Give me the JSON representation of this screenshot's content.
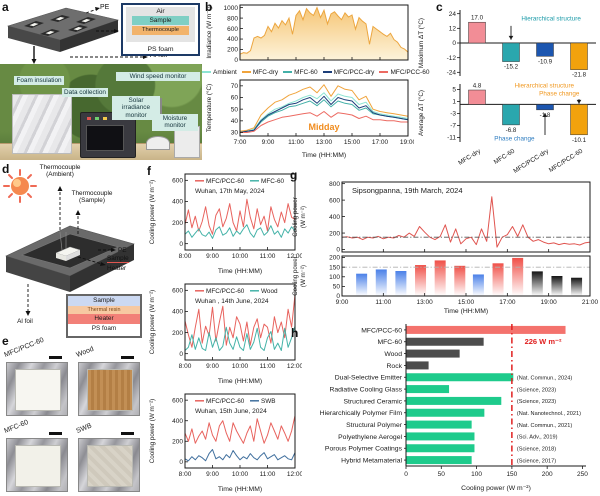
{
  "figure": {
    "panel_labels": {
      "a": "a",
      "b": "b",
      "c": "c",
      "d": "d",
      "e": "e",
      "f": "f",
      "g": "g",
      "h": "h"
    }
  },
  "panel_a": {
    "schematic": {
      "pe_label": "PE",
      "al_foil_label": "Al foil"
    },
    "stack": {
      "air": "Air",
      "sample": "Sample",
      "thermocouple": "Thermocouple",
      "ps_foam": "PS foam"
    },
    "photo_labels": {
      "foam": "Foam insulation",
      "data": "Data collection",
      "wind": "Wind speed monitor",
      "solar": "Solar irradiance monitor",
      "moisture": "Moisture monitor"
    }
  },
  "panel_d": {
    "labels": {
      "t_amb": "Thermocouple (Ambient)",
      "t_sample": "Thermocouple (Sample)",
      "pe": "PE",
      "sample": "Sample",
      "heater": "Heater",
      "al_foil": "Al foil"
    },
    "stack": {
      "sample": "Sample",
      "resin": "Thermal resin",
      "heater": "Heater",
      "foam": "PS foam"
    }
  },
  "panel_e": {
    "labels": [
      "MFC/PCC-60",
      "Wood",
      "MFC-60",
      "SWB"
    ]
  },
  "chart_data": [
    {
      "id": "b_irr",
      "type": "area",
      "ylabel": "Irradiance (W m⁻²)",
      "ylim": [
        0,
        1050
      ],
      "yticks": [
        0,
        200,
        400,
        600,
        800,
        1000
      ],
      "xticks": [
        "7:00",
        "9:00",
        "11:00",
        "13:00",
        "15:00",
        "17:00",
        "19:00"
      ],
      "fill": "#f6c677",
      "series": [
        {
          "name": "Irradiance",
          "color": "#eca63f",
          "values": [
            110,
            140,
            130,
            180,
            420,
            450,
            420,
            470,
            640,
            540,
            700,
            610,
            750,
            670,
            800,
            490,
            850,
            940,
            770,
            980,
            900,
            850,
            1000,
            810,
            950,
            690,
            880,
            920,
            840,
            770,
            900,
            820,
            860,
            590,
            810,
            740,
            690,
            300,
            640,
            590,
            540,
            490,
            450,
            510,
            390,
            340,
            240,
            210,
            150
          ]
        }
      ]
    },
    {
      "id": "b_temp",
      "type": "line",
      "ylabel": "Temperature (°C)",
      "xlabel": "Time (HH:MM)",
      "ylim": [
        27,
        75
      ],
      "yticks": [
        30,
        40,
        50,
        60,
        70
      ],
      "xticks": [
        "7:00",
        "9:00",
        "11:00",
        "13:00",
        "15:00",
        "17:00",
        "19:00"
      ],
      "annotation": {
        "text": "Midday",
        "color": "#f08c1e"
      },
      "series": [
        {
          "name": "Ambient",
          "color": "#8de4d3",
          "values": [
            30,
            31,
            33,
            41,
            46,
            50,
            52,
            55,
            57,
            60,
            62,
            59,
            64,
            57,
            63,
            61,
            60,
            54,
            56,
            48,
            46,
            45,
            44,
            43,
            42
          ]
        },
        {
          "name": "MFC-dry",
          "color": "#f0a43c",
          "values": [
            31,
            32,
            34,
            45,
            51,
            56,
            58,
            62,
            64,
            67,
            69,
            64,
            71,
            61,
            70,
            67,
            66,
            58,
            61,
            50,
            48,
            47,
            46,
            45,
            44
          ]
        },
        {
          "name": "MFC-60",
          "color": "#43b0a8",
          "values": [
            30,
            31,
            32,
            39,
            44,
            47,
            49,
            52,
            53,
            55,
            57,
            53,
            58,
            52,
            57,
            55,
            54,
            49,
            51,
            46,
            45,
            44,
            43,
            42,
            41
          ]
        },
        {
          "name": "MFC/PCC-dry",
          "color": "#1d3f7a",
          "values": [
            30,
            31,
            32,
            40,
            45,
            48,
            51,
            54,
            55,
            58,
            60,
            55,
            61,
            54,
            60,
            58,
            57,
            51,
            53,
            47,
            45,
            44,
            43,
            42,
            41
          ]
        },
        {
          "name": "MFC/PCC-60",
          "color": "#ec6a62",
          "values": [
            30,
            30,
            31,
            36,
            39,
            41,
            43,
            44,
            45,
            46,
            47,
            44,
            48,
            43,
            47,
            46,
            45,
            42,
            44,
            41,
            41,
            40,
            40,
            39,
            39
          ]
        }
      ]
    },
    {
      "id": "c_max",
      "type": "bar",
      "ylabel": "Maximum ΔT (°C)",
      "categories": [
        "MFC-dry",
        "MFC-60",
        "MFC/PCC-dry",
        "MFC/PCC-60"
      ],
      "values": [
        17.0,
        -15.2,
        -10.9,
        -21.8
      ],
      "value_labels": [
        "17.0",
        "-15.2",
        "-10.9",
        "-21.8"
      ],
      "bar_colors": [
        "#f28d96",
        "#2aa7ae",
        "#1c56b0",
        "#f2a20d"
      ],
      "ylim": [
        -27,
        27
      ],
      "yticks": [
        24,
        12,
        0,
        -12,
        -24
      ],
      "annotations": [
        {
          "text": "Hierarchical structure",
          "color": "#1a9aa8"
        }
      ]
    },
    {
      "id": "c_avg",
      "type": "bar",
      "ylabel": "Average ΔT (°C)",
      "categories": [
        "MFC-dry",
        "MFC-60",
        "MFC/PCC-dry",
        "MFC/PCC-60"
      ],
      "values": [
        4.8,
        -6.8,
        -1.8,
        -10.1
      ],
      "value_labels": [
        "4.8",
        "-6.8",
        "-1.8",
        "-10.1"
      ],
      "bar_colors": [
        "#f28d96",
        "#2aa7ae",
        "#1c56b0",
        "#f2a20d"
      ],
      "ylim": [
        -12.5,
        6.8
      ],
      "yticks": [
        5,
        1,
        -3,
        -7,
        -11
      ],
      "annotations": [
        {
          "text": "Hierarchical structure",
          "color": "#f0971e"
        },
        {
          "text": "Phase change",
          "color": "#f0971e"
        },
        {
          "text": "Phase change",
          "color": "#2b7bbf"
        }
      ]
    },
    {
      "id": "f1",
      "type": "line",
      "legend_inline": true,
      "title": "Wuhan, 17th May, 2024",
      "ylabel": "Cooling power (W m⁻²)",
      "xlabel": "Time (HH:MM)",
      "ylim": [
        -60,
        660
      ],
      "yticks": [
        0,
        200,
        400,
        600
      ],
      "xticks": [
        "8:00",
        "9:00",
        "10:00",
        "11:00",
        "12:00"
      ],
      "series": [
        {
          "name": "MFC/PCC-60",
          "color": "#e8635e",
          "values": [
            180,
            320,
            150,
            260,
            120,
            210,
            350,
            170,
            90,
            270,
            330,
            160,
            240,
            380,
            200,
            120,
            310,
            160,
            420,
            250,
            140,
            330,
            180,
            260,
            120,
            350,
            230,
            160,
            300,
            200,
            380,
            250,
            230
          ]
        },
        {
          "name": "MFC-60",
          "color": "#45b3a8",
          "values": [
            90,
            120,
            60,
            100,
            140,
            85,
            70,
            110,
            50,
            130,
            160,
            80,
            100,
            150,
            70,
            120,
            90,
            140,
            180,
            100,
            60,
            130,
            150,
            80,
            110,
            170,
            90,
            120,
            60,
            140,
            100,
            160,
            120
          ]
        }
      ]
    },
    {
      "id": "f2",
      "type": "line",
      "legend_inline": true,
      "title": "Wuhan , 14th June, 2024",
      "ylabel": "Cooling power (W m⁻²)",
      "xlabel": "Time (HH:MM)",
      "ylim": [
        -60,
        660
      ],
      "yticks": [
        0,
        200,
        400,
        600
      ],
      "xticks": [
        "8:00",
        "9:00",
        "10:00",
        "11:00",
        "12:00"
      ],
      "series": [
        {
          "name": "MFC/PCC-60",
          "color": "#e8635e",
          "values": [
            310,
            180,
            60,
            250,
            420,
            100,
            260,
            170,
            440,
            120,
            300,
            450,
            80,
            250,
            150,
            350,
            280,
            120,
            300,
            80,
            250,
            330,
            150,
            280,
            250,
            100,
            350,
            200,
            300,
            150,
            420,
            250,
            560
          ]
        },
        {
          "name": "Wood",
          "color": "#45b3a8",
          "values": [
            30,
            60,
            180,
            40,
            150,
            50,
            30,
            200,
            60,
            150,
            30,
            70,
            250,
            100,
            40,
            160,
            60,
            30,
            190,
            40,
            110,
            240,
            60,
            30,
            150,
            210,
            40,
            100,
            30,
            240,
            60,
            150,
            260
          ]
        }
      ]
    },
    {
      "id": "f3",
      "type": "line",
      "legend_inline": true,
      "title": "Wuhan, 15th June, 2024",
      "ylabel": "Cooling power (W m⁻²)",
      "xlabel": "Time (HH:MM)",
      "ylim": [
        -60,
        660
      ],
      "yticks": [
        0,
        200,
        400,
        600
      ],
      "xticks": [
        "8:00",
        "9:00",
        "10:00",
        "11:00",
        "12:00"
      ],
      "series": [
        {
          "name": "MFC/PCC-60",
          "color": "#e8635e",
          "values": [
            280,
            200,
            320,
            180,
            250,
            300,
            220,
            380,
            260,
            200,
            350,
            400,
            280,
            200,
            380,
            300,
            240,
            180,
            280,
            350,
            200,
            420,
            300,
            180,
            260,
            380,
            300,
            220,
            350,
            280,
            200,
            300,
            450
          ]
        },
        {
          "name": "SWB",
          "color": "#41709e",
          "values": [
            30,
            10,
            50,
            20,
            60,
            40,
            10,
            80,
            120,
            30,
            50,
            20,
            70,
            40,
            110,
            60,
            20,
            50,
            30,
            80,
            40,
            20,
            60,
            90,
            30,
            50,
            70,
            20,
            40,
            60,
            30,
            20,
            90
          ]
        }
      ]
    },
    {
      "id": "g_line",
      "type": "line",
      "title_serif": true,
      "title_fs": 7.5,
      "title": "Sipsongpanna, 19th March, 2024",
      "ylabel_lines": [
        "Cooling power",
        "(W m⁻²)"
      ],
      "ylim": [
        -30,
        820
      ],
      "yticks": [
        0,
        200,
        400,
        600,
        800
      ],
      "xticks": [
        "9:00",
        "11:00",
        "13:00",
        "15:00",
        "17:00",
        "19:00",
        "21:00"
      ],
      "refline": {
        "y": 150,
        "color": "#555555"
      },
      "series": [
        {
          "name": "MFC/PCC-60",
          "color": "#e05550",
          "values": [
            150,
            155,
            140,
            150,
            120,
            150,
            140,
            160,
            130,
            150,
            140,
            170,
            150,
            200,
            160,
            280,
            210,
            150,
            120,
            160,
            300,
            90,
            250,
            70,
            130,
            150,
            60,
            250,
            100,
            640,
            30,
            150,
            180,
            280,
            160,
            300,
            150,
            100,
            120,
            90,
            70,
            80,
            60,
            75,
            65,
            70,
            55,
            80,
            90
          ]
        }
      ]
    },
    {
      "id": "g_bars",
      "type": "gbar",
      "ylabel_lines": [
        "Cooling power",
        "(W m⁻²)"
      ],
      "xlabel": "Time (HH:MM)",
      "xlim": [
        9,
        21
      ],
      "ylim": [
        0,
        208
      ],
      "yticks": [
        0,
        50,
        100,
        150,
        200
      ],
      "xticks": [
        "9:00",
        "11:00",
        "13:00",
        "15:00",
        "17:00",
        "19:00",
        "21:00"
      ],
      "xtick_vals": [
        9,
        11,
        13,
        15,
        17,
        19,
        21
      ],
      "positions": [
        9.95,
        10.9,
        11.85,
        12.8,
        13.75,
        14.7,
        15.6,
        16.55,
        17.5,
        18.45,
        19.4,
        20.35
      ],
      "values": [
        116,
        138,
        130,
        161,
        185,
        157,
        112,
        170,
        198,
        128,
        104,
        95
      ],
      "colors": [
        "blue",
        "blue",
        "blue",
        "red",
        "red",
        "red",
        "blue",
        "red",
        "red",
        "black",
        "black",
        "black"
      ],
      "refline": {
        "y": 150,
        "color": "#b0b0b0"
      }
    },
    {
      "id": "h",
      "type": "hbar",
      "xlabel": "Cooling power (W m⁻²)",
      "xlim": [
        0,
        255
      ],
      "xticks": [
        0,
        50,
        100,
        150,
        200,
        250
      ],
      "categories": [
        "MFC/PCC-60",
        "MFC-60",
        "Wood",
        "Rock",
        "Dual-Selective Emitter",
        "Radiative Cooling Glass",
        "Structured Ceramic",
        "Hierarchically Polymer Film",
        "Structural Polymer",
        "Polyethylene Aerogel",
        "Porous Polymer Coatings",
        "Hybrid Metamaterial"
      ],
      "values": [
        226,
        110,
        76,
        32,
        152,
        61,
        135,
        111,
        93,
        97,
        97,
        93
      ],
      "colors": [
        "#f4726d",
        "#4d4d4d",
        "#4d4d4d",
        "#4d4d4d",
        "#1ecb8c",
        "#1ecb8c",
        "#1ecb8c",
        "#1ecb8c",
        "#1ecb8c",
        "#1ecb8c",
        "#1ecb8c",
        "#1ecb8c"
      ],
      "refs": [
        "",
        "",
        "",
        "",
        "(Nat. Commun., 2024)",
        "(Science, 2023)",
        "(Science, 2023)",
        "(Nat. Nanotechnol., 2021)",
        "(Nat. Commun., 2021)",
        "(Sci. Adv., 2019)",
        "(Science, 2018)",
        "(Science, 2017)"
      ],
      "refline": {
        "x": 150,
        "color": "#e02020"
      },
      "highlight_label": "226 W m⁻²",
      "highlight_color": "#e02020"
    }
  ]
}
